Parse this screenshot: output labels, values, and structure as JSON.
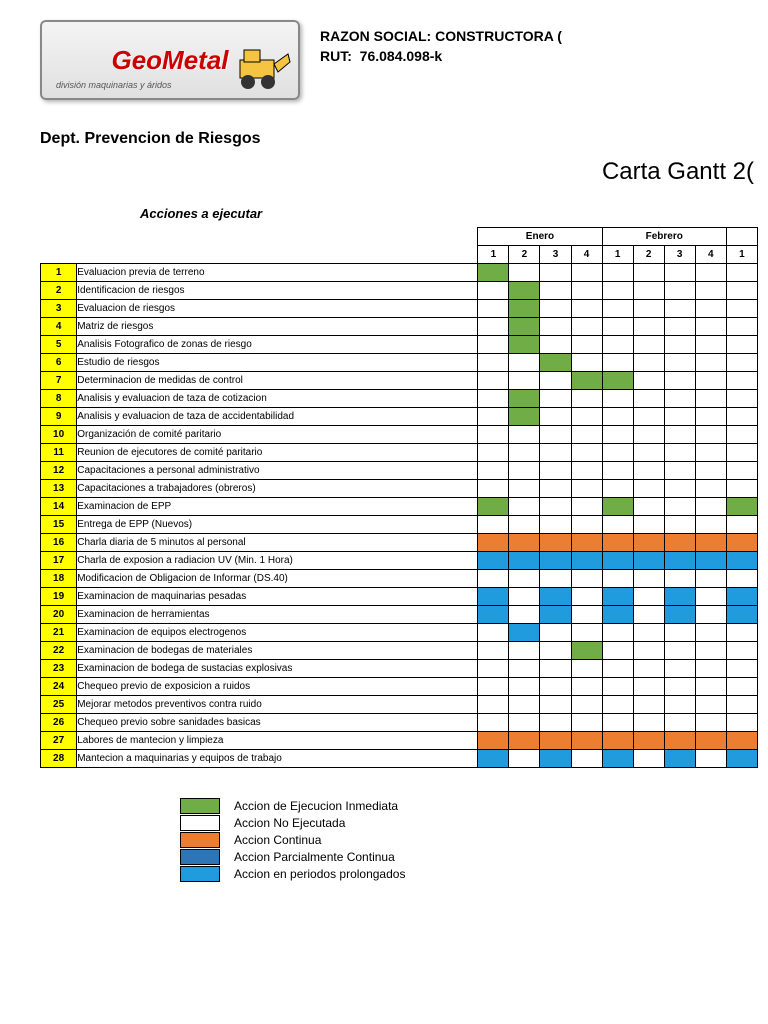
{
  "logo": {
    "name": "GeoMetal",
    "sub": "división maquinarias y áridos"
  },
  "header": {
    "razon_label": "RAZON SOCIAL:",
    "razon_value": "CONSTRUCTORA (",
    "rut_label": "RUT:",
    "rut_value": "76.084.098-k"
  },
  "dept": "Dept. Prevencion de Riesgos",
  "title": "Carta Gantt 2(",
  "actions_header": "Acciones a ejecutar",
  "months": [
    "Enero",
    "Febrero",
    ""
  ],
  "weeks_per_month": [
    "1",
    "2",
    "3",
    "4",
    "1",
    "2",
    "3",
    "4",
    "1"
  ],
  "colors": {
    "yellow": "#ffff00",
    "green": "#70ad47",
    "orange": "#ed7d31",
    "blue": "#1f9bde",
    "darkblue": "#2e75b6",
    "white": "#ffffff",
    "border": "#000000",
    "peach": "#f9c28a"
  },
  "rows": [
    {
      "n": 1,
      "label": "Evaluacion previa de terreno",
      "cells": [
        "green",
        "",
        "",
        "",
        "",
        "",
        "",
        "",
        ""
      ]
    },
    {
      "n": 2,
      "label": "Identificacion de riesgos",
      "cells": [
        "",
        "green",
        "",
        "",
        "",
        "",
        "",
        "",
        ""
      ]
    },
    {
      "n": 3,
      "label": "Evaluacion de riesgos",
      "cells": [
        "",
        "green",
        "",
        "",
        "",
        "",
        "",
        "",
        ""
      ]
    },
    {
      "n": 4,
      "label": "Matriz de riesgos",
      "cells": [
        "",
        "green",
        "",
        "",
        "",
        "",
        "",
        "",
        ""
      ]
    },
    {
      "n": 5,
      "label": "Analisis Fotografico de zonas de riesgo",
      "cells": [
        "",
        "green",
        "",
        "",
        "",
        "",
        "",
        "",
        ""
      ]
    },
    {
      "n": 6,
      "label": "Estudio de riesgos",
      "cells": [
        "",
        "",
        "green",
        "",
        "",
        "",
        "",
        "",
        ""
      ]
    },
    {
      "n": 7,
      "label": "Determinacion de medidas de control",
      "cells": [
        "",
        "",
        "",
        "green",
        "green",
        "",
        "",
        "",
        ""
      ]
    },
    {
      "n": 8,
      "label": "Analisis y evaluacion de taza de cotizacion",
      "cells": [
        "",
        "green",
        "",
        "",
        "",
        "",
        "",
        "",
        ""
      ]
    },
    {
      "n": 9,
      "label": "Analisis y evaluacion de taza de accidentabilidad",
      "cells": [
        "",
        "green",
        "",
        "",
        "",
        "",
        "",
        "",
        ""
      ]
    },
    {
      "n": 10,
      "label": "Organización de comité paritario",
      "cells": [
        "",
        "",
        "",
        "",
        "",
        "",
        "",
        "",
        ""
      ]
    },
    {
      "n": 11,
      "label": "Reunion de ejecutores de comité paritario",
      "cells": [
        "",
        "",
        "",
        "",
        "",
        "",
        "",
        "",
        ""
      ]
    },
    {
      "n": 12,
      "label": "Capacitaciones a personal administrativo",
      "cells": [
        "",
        "",
        "",
        "",
        "",
        "",
        "",
        "",
        ""
      ]
    },
    {
      "n": 13,
      "label": "Capacitaciones a trabajadores (obreros)",
      "cells": [
        "",
        "",
        "",
        "",
        "",
        "",
        "",
        "",
        ""
      ]
    },
    {
      "n": 14,
      "label": "Examinacion de EPP",
      "cells": [
        "green",
        "",
        "",
        "",
        "green",
        "",
        "",
        "",
        "green"
      ]
    },
    {
      "n": 15,
      "label": "Entrega de EPP (Nuevos)",
      "cells": [
        "",
        "",
        "",
        "",
        "",
        "",
        "",
        "",
        ""
      ]
    },
    {
      "n": 16,
      "label": "Charla diaria de 5 minutos al personal",
      "cells": [
        "orange",
        "orange",
        "orange",
        "orange",
        "orange",
        "orange",
        "orange",
        "orange",
        "orange"
      ]
    },
    {
      "n": 17,
      "label": "Charla de exposion a radiacion UV (Min. 1 Hora)",
      "cells": [
        "blue",
        "blue",
        "blue",
        "blue",
        "blue",
        "blue",
        "blue",
        "blue",
        "blue"
      ]
    },
    {
      "n": 18,
      "label": "Modificacion de Obligacion de Informar (DS.40)",
      "cells": [
        "",
        "",
        "",
        "",
        "",
        "",
        "",
        "",
        ""
      ]
    },
    {
      "n": 19,
      "label": "Examinacion de maquinarias pesadas",
      "cells": [
        "blue",
        "",
        "blue",
        "",
        "blue",
        "",
        "blue",
        "",
        "blue"
      ]
    },
    {
      "n": 20,
      "label": "Examinacion de herramientas",
      "cells": [
        "blue",
        "",
        "blue",
        "",
        "blue",
        "",
        "blue",
        "",
        "blue"
      ]
    },
    {
      "n": 21,
      "label": "Examinacion de equipos electrogenos",
      "cells": [
        "",
        "blue",
        "",
        "",
        "",
        "",
        "",
        "",
        ""
      ]
    },
    {
      "n": 22,
      "label": "Examinacion de bodegas de materiales",
      "cells": [
        "",
        "",
        "",
        "green",
        "",
        "",
        "",
        "",
        ""
      ]
    },
    {
      "n": 23,
      "label": "Examinacion de bodega de sustacias explosivas",
      "cells": [
        "",
        "",
        "",
        "",
        "",
        "",
        "",
        "",
        ""
      ]
    },
    {
      "n": 24,
      "label": "Chequeo previo de exposicion a ruidos",
      "cells": [
        "",
        "",
        "",
        "",
        "",
        "",
        "",
        "",
        ""
      ]
    },
    {
      "n": 25,
      "label": "Mejorar metodos preventivos contra ruido",
      "cells": [
        "",
        "",
        "",
        "",
        "",
        "",
        "",
        "",
        ""
      ]
    },
    {
      "n": 26,
      "label": "Chequeo previo sobre sanidades basicas",
      "cells": [
        "",
        "",
        "",
        "",
        "",
        "",
        "",
        "",
        ""
      ]
    },
    {
      "n": 27,
      "label": "Labores de mantecion y limpieza",
      "cells": [
        "orange",
        "orange",
        "orange",
        "orange",
        "orange",
        "orange",
        "orange",
        "orange",
        "orange"
      ]
    },
    {
      "n": 28,
      "label": "Mantecion a maquinarias y equipos de trabajo",
      "cells": [
        "blue",
        "",
        "blue",
        "",
        "blue",
        "",
        "blue",
        "",
        "blue"
      ]
    }
  ],
  "legend": [
    {
      "color": "green",
      "label": "Accion de Ejecucion Inmediata"
    },
    {
      "color": "white",
      "label": "Accion No Ejecutada"
    },
    {
      "color": "orange",
      "label": "Accion Continua"
    },
    {
      "color": "darkblue",
      "label": "Accion Parcialmente Continua"
    },
    {
      "color": "blue",
      "label": "Accion en periodos prolongados"
    }
  ]
}
